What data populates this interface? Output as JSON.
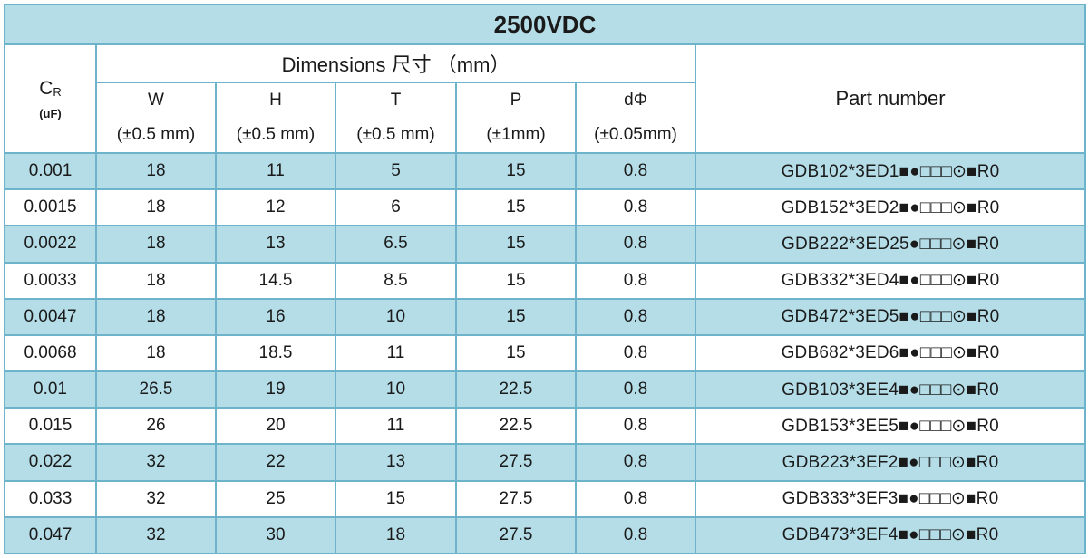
{
  "title": "2500VDC",
  "headers": {
    "cr_symbol": "C",
    "cr_subscript": "R",
    "cr_unit": "(uF)",
    "dimensions_label": "Dimensions 尺寸 （mm）",
    "part_number_label": "Part number",
    "columns": [
      {
        "name": "W",
        "tolerance": "(±0.5 mm)"
      },
      {
        "name": "H",
        "tolerance": "(±0.5 mm)"
      },
      {
        "name": "T",
        "tolerance": "(±0.5 mm)"
      },
      {
        "name": "P",
        "tolerance": "(±1mm)"
      },
      {
        "name": "dΦ",
        "tolerance": "(±0.05mm)"
      }
    ]
  },
  "rows": [
    {
      "cr": "0.001",
      "w": "18",
      "h": "11",
      "t": "5",
      "p": "15",
      "d": "0.8",
      "part": "GDB102*3ED1■●□□□⊙■R0"
    },
    {
      "cr": "0.0015",
      "w": "18",
      "h": "12",
      "t": "6",
      "p": "15",
      "d": "0.8",
      "part": "GDB152*3ED2■●□□□⊙■R0"
    },
    {
      "cr": "0.0022",
      "w": "18",
      "h": "13",
      "t": "6.5",
      "p": "15",
      "d": "0.8",
      "part": "GDB222*3ED25●□□□⊙■R0"
    },
    {
      "cr": "0.0033",
      "w": "18",
      "h": "14.5",
      "t": "8.5",
      "p": "15",
      "d": "0.8",
      "part": "GDB332*3ED4■●□□□⊙■R0"
    },
    {
      "cr": "0.0047",
      "w": "18",
      "h": "16",
      "t": "10",
      "p": "15",
      "d": "0.8",
      "part": "GDB472*3ED5■●□□□⊙■R0"
    },
    {
      "cr": "0.0068",
      "w": "18",
      "h": "18.5",
      "t": "11",
      "p": "15",
      "d": "0.8",
      "part": "GDB682*3ED6■●□□□⊙■R0"
    },
    {
      "cr": "0.01",
      "w": "26.5",
      "h": "19",
      "t": "10",
      "p": "22.5",
      "d": "0.8",
      "part": "GDB103*3EE4■●□□□⊙■R0"
    },
    {
      "cr": "0.015",
      "w": "26",
      "h": "20",
      "t": "11",
      "p": "22.5",
      "d": "0.8",
      "part": "GDB153*3EE5■●□□□⊙■R0"
    },
    {
      "cr": "0.022",
      "w": "32",
      "h": "22",
      "t": "13",
      "p": "27.5",
      "d": "0.8",
      "part": "GDB223*3EF2■●□□□⊙■R0"
    },
    {
      "cr": "0.033",
      "w": "32",
      "h": "25",
      "t": "15",
      "p": "27.5",
      "d": "0.8",
      "part": "GDB333*3EF3■●□□□⊙■R0"
    },
    {
      "cr": "0.047",
      "w": "32",
      "h": "30",
      "t": "18",
      "p": "27.5",
      "d": "0.8",
      "part": "GDB473*3EF4■●□□□⊙■R0"
    }
  ],
  "colors": {
    "row_shade": "#b4dde7",
    "border": "#6db3c9"
  }
}
